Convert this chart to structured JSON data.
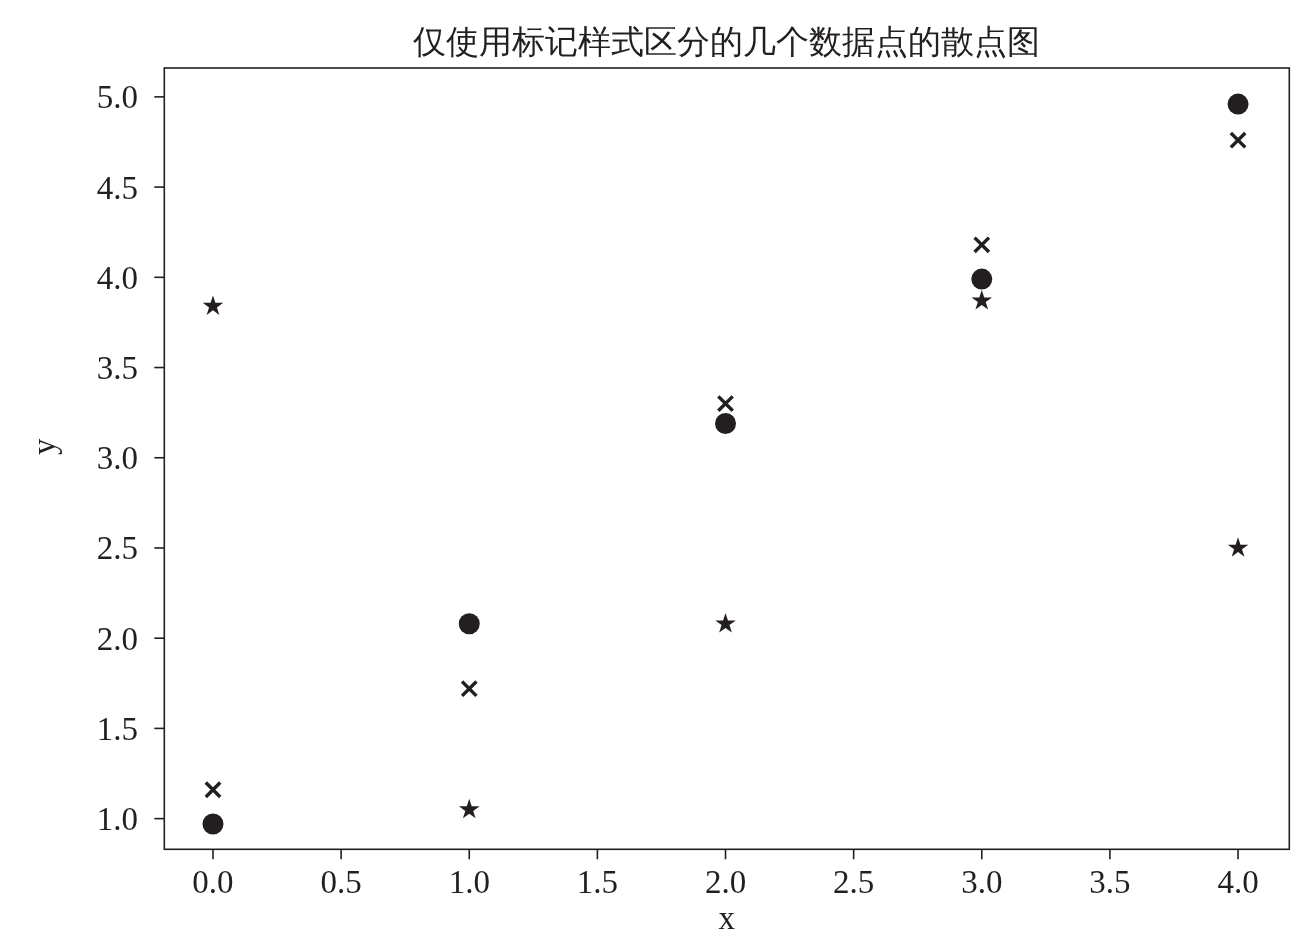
{
  "chart_data": {
    "type": "scatter",
    "title": "仅使用标记样式区分的几个数据点的散点图",
    "xlabel": "x",
    "ylabel": "y",
    "x": [
      0,
      1,
      2,
      3,
      4
    ],
    "series": [
      {
        "color": "#231f20",
        "marker": "circle",
        "values": [
          0.97,
          2.08,
          3.19,
          3.99,
          4.96
        ]
      },
      {
        "color": "#231f20",
        "marker": "cross",
        "values": [
          1.16,
          1.72,
          3.3,
          4.18,
          4.76
        ]
      },
      {
        "color": "#231f20",
        "marker": "star",
        "values": [
          3.84,
          1.05,
          2.08,
          3.87,
          2.5
        ]
      }
    ],
    "xlim": [
      -0.19,
      4.2
    ],
    "ylim": [
      0.83,
      5.16
    ],
    "xticks": [
      {
        "value": 0,
        "label": "0.0"
      },
      {
        "value": 0.5,
        "label": "0.5"
      },
      {
        "value": 1,
        "label": "1.0"
      },
      {
        "value": 1.5,
        "label": "1.5"
      },
      {
        "value": 2,
        "label": "2.0"
      },
      {
        "value": 2.5,
        "label": "2.5"
      },
      {
        "value": 3,
        "label": "3.0"
      },
      {
        "value": 3.5,
        "label": "3.5"
      },
      {
        "value": 4,
        "label": "4.0"
      }
    ],
    "yticks": [
      {
        "value": 1,
        "label": "1.0"
      },
      {
        "value": 1.5,
        "label": "1.5"
      },
      {
        "value": 2,
        "label": "2.0"
      },
      {
        "value": 2.5,
        "label": "2.5"
      },
      {
        "value": 3,
        "label": "3.0"
      },
      {
        "value": 3.5,
        "label": "3.5"
      },
      {
        "value": 4,
        "label": "4.0"
      },
      {
        "value": 4.5,
        "label": "4.5"
      },
      {
        "value": 5,
        "label": "5.0"
      }
    ]
  }
}
